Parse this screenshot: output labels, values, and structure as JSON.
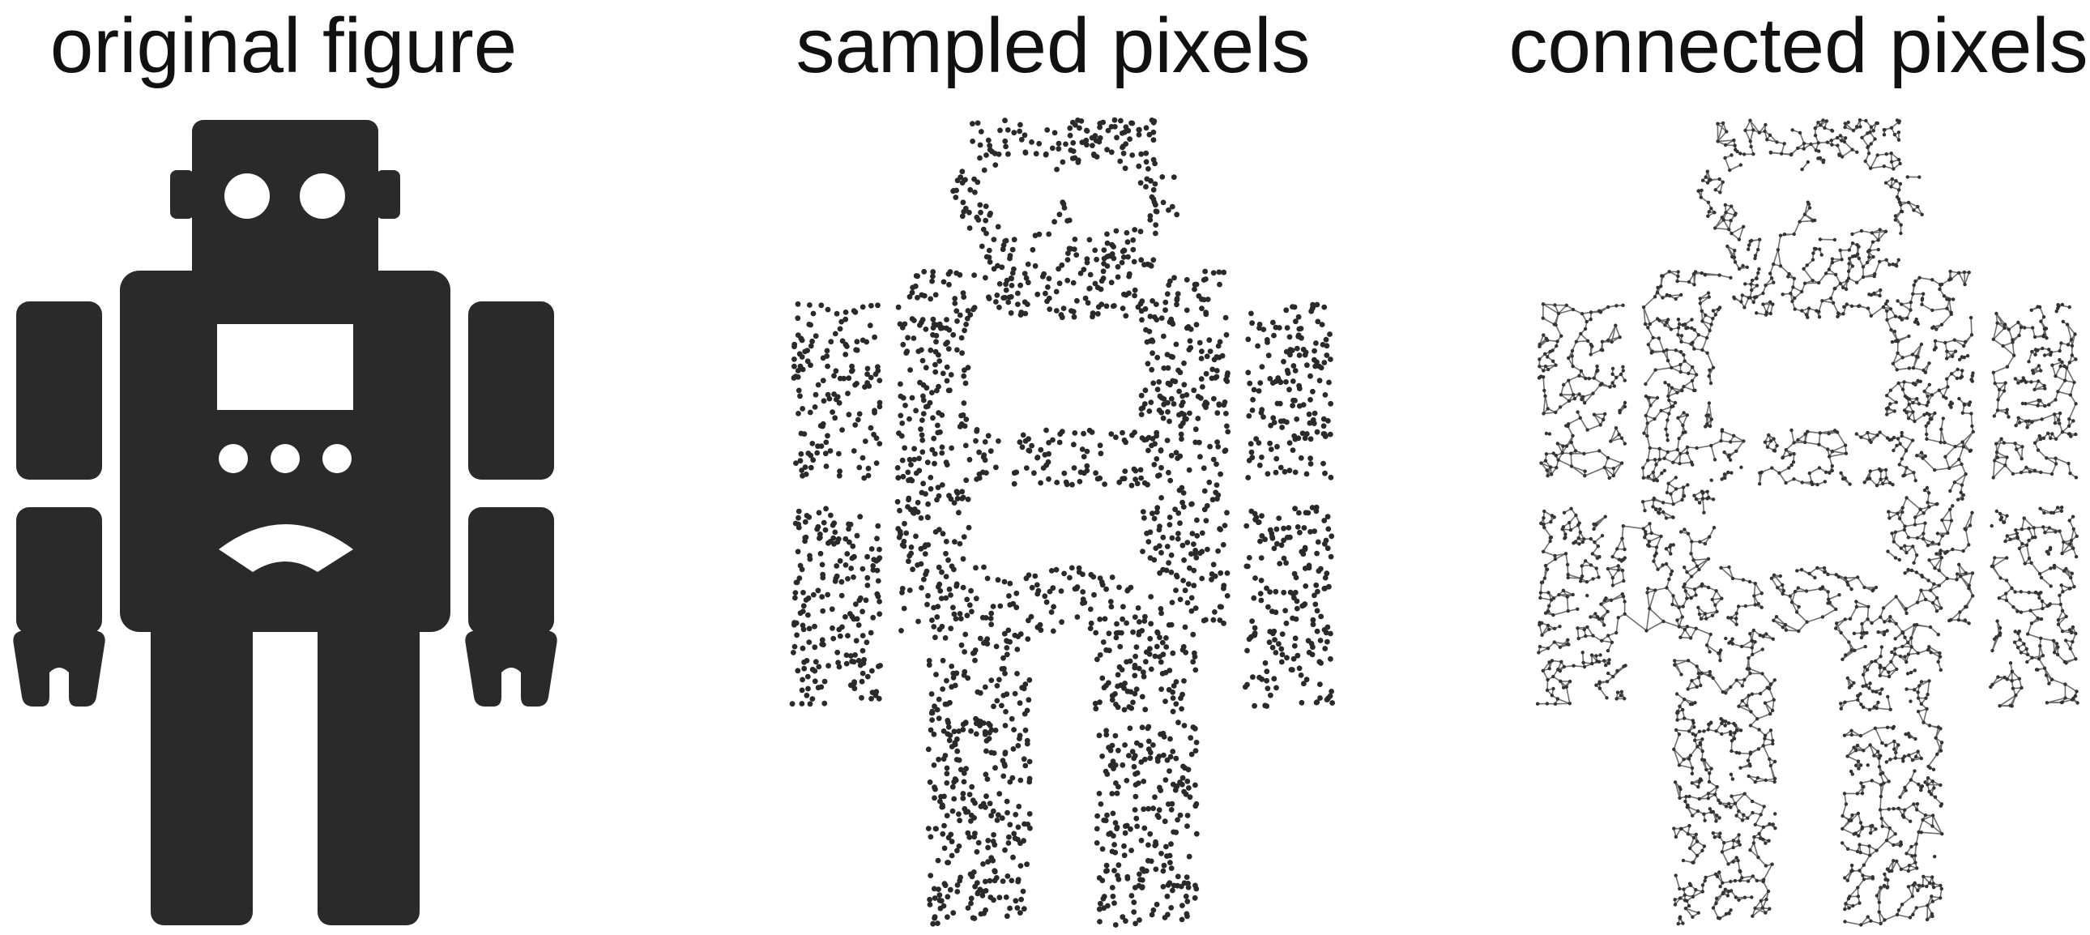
{
  "panels": {
    "original": {
      "title": "original figure"
    },
    "sampled": {
      "title": "sampled pixels"
    },
    "connected": {
      "title": "connected pixels"
    }
  },
  "colors": {
    "figure": "#2a2a2a",
    "points": "#2a2a2a",
    "edges": "#555555",
    "background": "#ffffff"
  },
  "icons": {
    "figure": "robot-icon"
  }
}
